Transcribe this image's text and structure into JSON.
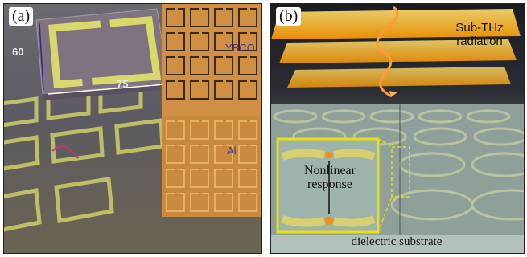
{
  "panel_a": {
    "label": "(a)",
    "dimension_width": "75",
    "dimension_height": "60",
    "material_top": "YBCO",
    "material_bottom": "Al",
    "colors": {
      "metal": "#d6d56a",
      "gold_chip": "#d9a050",
      "background": "#606066"
    }
  },
  "panel_b": {
    "label": "(b)",
    "radiation_label_line1": "Sub-THz",
    "radiation_label_line2": "radiation",
    "inset_label_line1": "Nonlinear",
    "inset_label_line2": "response",
    "substrate_label": "dielectric substrate",
    "colors": {
      "radiation": "#ffb400",
      "inset_border": "#e8e010",
      "substrate": "#9aa9a4"
    }
  }
}
